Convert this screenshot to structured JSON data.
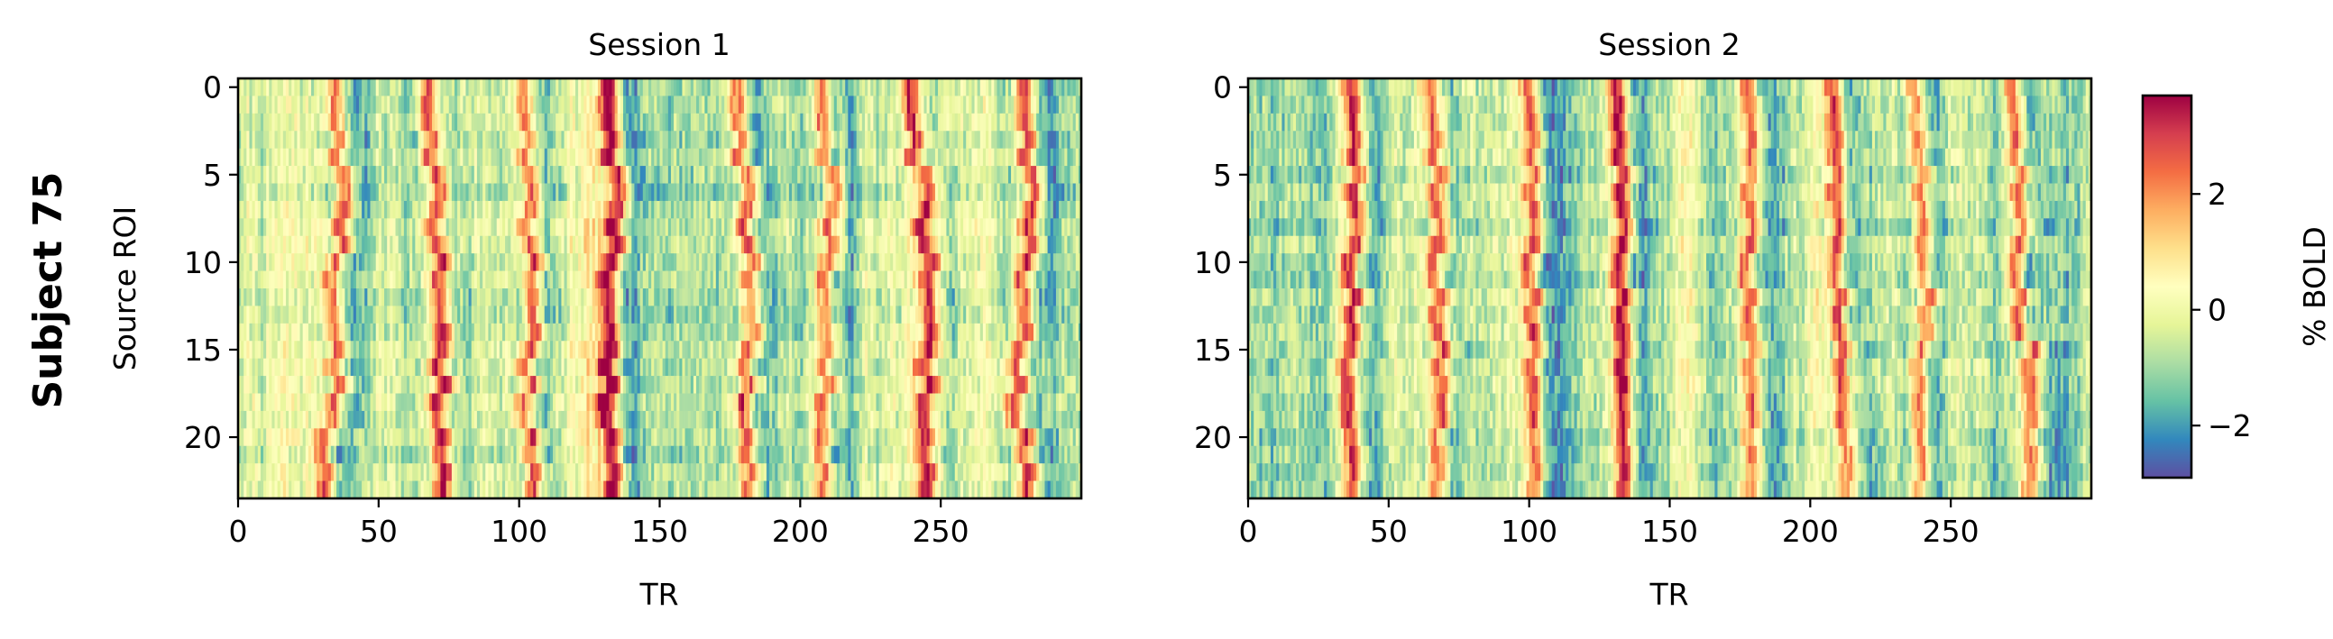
{
  "figure": {
    "row_label": "Subject 75"
  },
  "colormap": {
    "name": "Spectral_r",
    "stops": [
      "#5e4fa2",
      "#3288bd",
      "#66c2a5",
      "#abdda4",
      "#e6f598",
      "#ffffbf",
      "#fee08b",
      "#fdae61",
      "#f46d43",
      "#d53e4f",
      "#9e0142"
    ]
  },
  "colorbar": {
    "label": "% BOLD",
    "range": [
      -2.9,
      3.7
    ],
    "ticks": [
      -2,
      0,
      2
    ],
    "tick_labels": [
      "−2",
      "0",
      "2"
    ]
  },
  "chart_data": [
    {
      "type": "heatmap",
      "title": "Session 1",
      "xlabel": "TR",
      "ylabel": "Source ROI",
      "n_rows": 24,
      "n_cols": 300,
      "xlim": [
        0,
        300
      ],
      "ylim": [
        23.5,
        -0.5
      ],
      "xticks": [
        0,
        50,
        100,
        150,
        200,
        250
      ],
      "yticks": [
        0,
        5,
        10,
        15,
        20
      ],
      "peak_TR_by_ROI_block": [
        [
          35,
          68,
          102,
          132,
          178,
          208,
          240,
          280
        ],
        [
          36,
          69,
          102,
          134,
          180,
          210,
          243,
          281
        ],
        [
          32,
          70,
          103,
          130,
          181,
          207,
          244,
          278
        ],
        [
          34,
          71,
          102,
          131,
          180,
          208,
          244,
          276
        ],
        [
          30,
          72,
          104,
          133,
          181,
          207,
          244,
          280
        ]
      ],
      "ROI_block_starts": [
        0,
        5,
        10,
        15,
        20
      ],
      "peak_value_range": [
        2.0,
        3.5
      ],
      "baseline_value_range": [
        -2.5,
        0.8
      ]
    },
    {
      "type": "heatmap",
      "title": "Session 2",
      "xlabel": "TR",
      "ylabel": "",
      "n_rows": 24,
      "n_cols": 300,
      "xlim": [
        0,
        300
      ],
      "ylim": [
        23.5,
        -0.5
      ],
      "xticks": [
        0,
        50,
        100,
        150,
        200,
        250
      ],
      "yticks": [
        0,
        5,
        10,
        15,
        20
      ],
      "peak_TR_by_ROI_block": [
        [
          37,
          65,
          100,
          131,
          178,
          208,
          237,
          272
        ],
        [
          38,
          67,
          101,
          133,
          178,
          209,
          239,
          274
        ],
        [
          36,
          66,
          100,
          132,
          177,
          209,
          240,
          273
        ],
        [
          34,
          67,
          100,
          132,
          178,
          210,
          237,
          277
        ],
        [
          36,
          66,
          101,
          133,
          178,
          212,
          238,
          277
        ]
      ],
      "ROI_block_starts": [
        0,
        5,
        10,
        15,
        20
      ],
      "peak_value_range": [
        2.0,
        3.5
      ],
      "baseline_value_range": [
        -2.5,
        0.8
      ]
    }
  ]
}
